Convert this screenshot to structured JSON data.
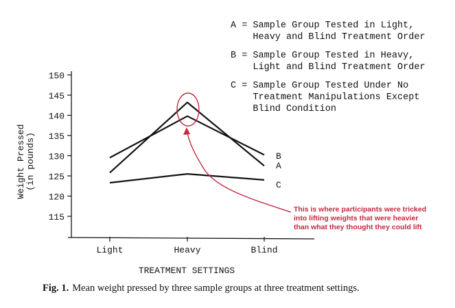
{
  "chart_data": {
    "type": "line",
    "categories": [
      "Light",
      "Heavy",
      "Blind"
    ],
    "series": [
      {
        "name": "A",
        "values": [
          125.8,
          143.2,
          127.5
        ]
      },
      {
        "name": "B",
        "values": [
          129.5,
          139.8,
          130.2
        ]
      },
      {
        "name": "C",
        "values": [
          123.3,
          125.5,
          124.0
        ]
      }
    ],
    "ylim": [
      110,
      150
    ],
    "yticks": [
      115,
      120,
      125,
      130,
      135,
      140,
      145,
      150
    ],
    "ytick_labels": [
      "115",
      "120",
      "125",
      "130",
      "135",
      "140",
      "145",
      "150"
    ],
    "ylabel_lines": [
      "Weight Pressed",
      "(in pounds)"
    ],
    "xlabel": "TREATMENT SETTINGS",
    "grid": false,
    "legend_lines": [
      [
        "A = Sample Group Tested in Light,",
        "    Heavy and Blind Treatment Order"
      ],
      [
        "B = Sample Group Tested in Heavy,",
        "    Light and Blind Treatment Order"
      ],
      [
        "C = Sample Group Tested Under No",
        "    Treatment Manipulations Except",
        "    Blind Condition"
      ]
    ],
    "line_end_labels": [
      "A",
      "B",
      "C"
    ],
    "annotation": {
      "lines": [
        "This is where participants were tricked",
        "into lifting weights that were heavier",
        "than what they thought they could lift"
      ],
      "color": "#c2283f"
    },
    "caption_prefix": "Fig. 1.",
    "caption": "Mean weight pressed by three sample groups at three treatment settings."
  }
}
